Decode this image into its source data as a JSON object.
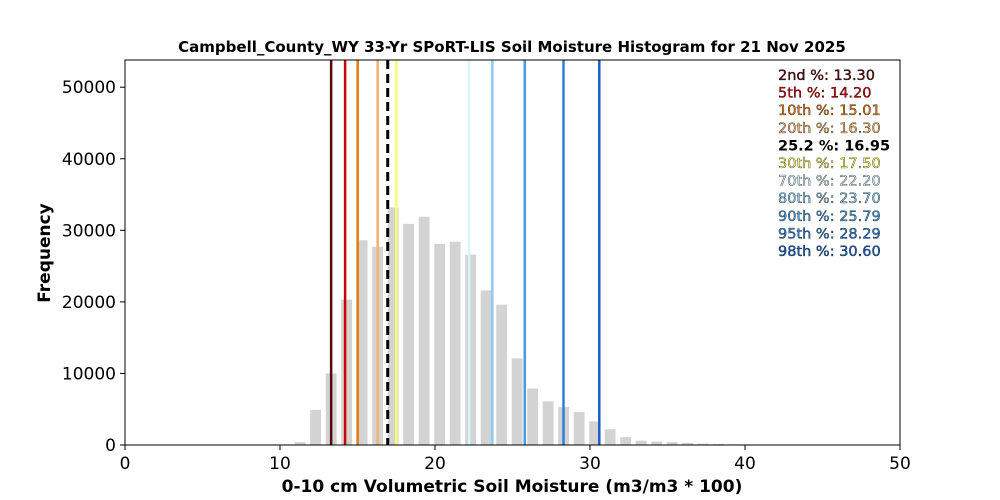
{
  "chart_data": {
    "type": "bar",
    "title": "Campbell_County_WY 33-Yr SPoRT-LIS Soil Moisture Histogram for 21 Nov 2025",
    "xlabel": "0-10 cm Volumetric Soil Moisture (m3/m3 * 100)",
    "ylabel": "Frequency",
    "xlim": [
      0,
      50
    ],
    "ylim": [
      0,
      53800
    ],
    "xticks": [
      "0",
      "10",
      "20",
      "30",
      "40",
      "50"
    ],
    "yticks": [
      "0",
      "10000",
      "20000",
      "30000",
      "40000",
      "50000"
    ],
    "bar_color": "#d3d3d3",
    "bars": [
      {
        "x": 11.3,
        "value": 400
      },
      {
        "x": 12.3,
        "value": 4900
      },
      {
        "x": 13.3,
        "value": 10000
      },
      {
        "x": 14.3,
        "value": 20300
      },
      {
        "x": 15.3,
        "value": 28600
      },
      {
        "x": 16.3,
        "value": 27700
      },
      {
        "x": 17.3,
        "value": 33200
      },
      {
        "x": 18.3,
        "value": 30900
      },
      {
        "x": 19.3,
        "value": 31900
      },
      {
        "x": 20.3,
        "value": 28100
      },
      {
        "x": 21.3,
        "value": 28400
      },
      {
        "x": 22.3,
        "value": 26600
      },
      {
        "x": 23.3,
        "value": 21600
      },
      {
        "x": 24.3,
        "value": 19600
      },
      {
        "x": 25.3,
        "value": 12100
      },
      {
        "x": 26.3,
        "value": 7900
      },
      {
        "x": 27.3,
        "value": 6100
      },
      {
        "x": 28.3,
        "value": 5300
      },
      {
        "x": 29.3,
        "value": 4600
      },
      {
        "x": 30.3,
        "value": 3300
      },
      {
        "x": 31.3,
        "value": 2200
      },
      {
        "x": 32.3,
        "value": 1100
      },
      {
        "x": 33.3,
        "value": 600
      },
      {
        "x": 34.3,
        "value": 500
      },
      {
        "x": 35.3,
        "value": 400
      },
      {
        "x": 36.3,
        "value": 300
      },
      {
        "x": 37.3,
        "value": 200
      },
      {
        "x": 38.3,
        "value": 150
      },
      {
        "x": 39.3,
        "value": 100
      },
      {
        "x": 40.3,
        "value": 80
      }
    ],
    "percentiles": [
      {
        "label": "2nd %: 13.30",
        "value": 13.3,
        "color": "#5a0a0a"
      },
      {
        "label": "5th %: 14.20",
        "value": 14.2,
        "color": "#cc0000"
      },
      {
        "label": "10th %: 15.01",
        "value": 15.01,
        "color": "#e07b10"
      },
      {
        "label": "20th %: 16.30",
        "value": 16.3,
        "color": "#f5b070"
      },
      {
        "label": "30th %: 17.50",
        "value": 17.5,
        "color": "#ffff66"
      },
      {
        "label": "70th %: 22.20",
        "value": 22.2,
        "color": "#d6f5ff"
      },
      {
        "label": "80th %: 23.70",
        "value": 23.7,
        "color": "#8ecaf0"
      },
      {
        "label": "90th %: 25.79",
        "value": 25.79,
        "color": "#4a9ae0"
      },
      {
        "label": "95th %: 28.29",
        "value": 28.29,
        "color": "#2f7fd6"
      },
      {
        "label": "98th %: 30.60",
        "value": 30.6,
        "color": "#1a5fc0"
      }
    ],
    "current": {
      "label": "25.2 %: 16.95",
      "value": 16.95,
      "color": "#000000",
      "style": "dashed"
    },
    "legend_order": [
      "2nd",
      "5th",
      "10th",
      "20th",
      "current",
      "30th",
      "70th",
      "80th",
      "90th",
      "95th",
      "98th"
    ],
    "legend_placement": "top-right"
  }
}
